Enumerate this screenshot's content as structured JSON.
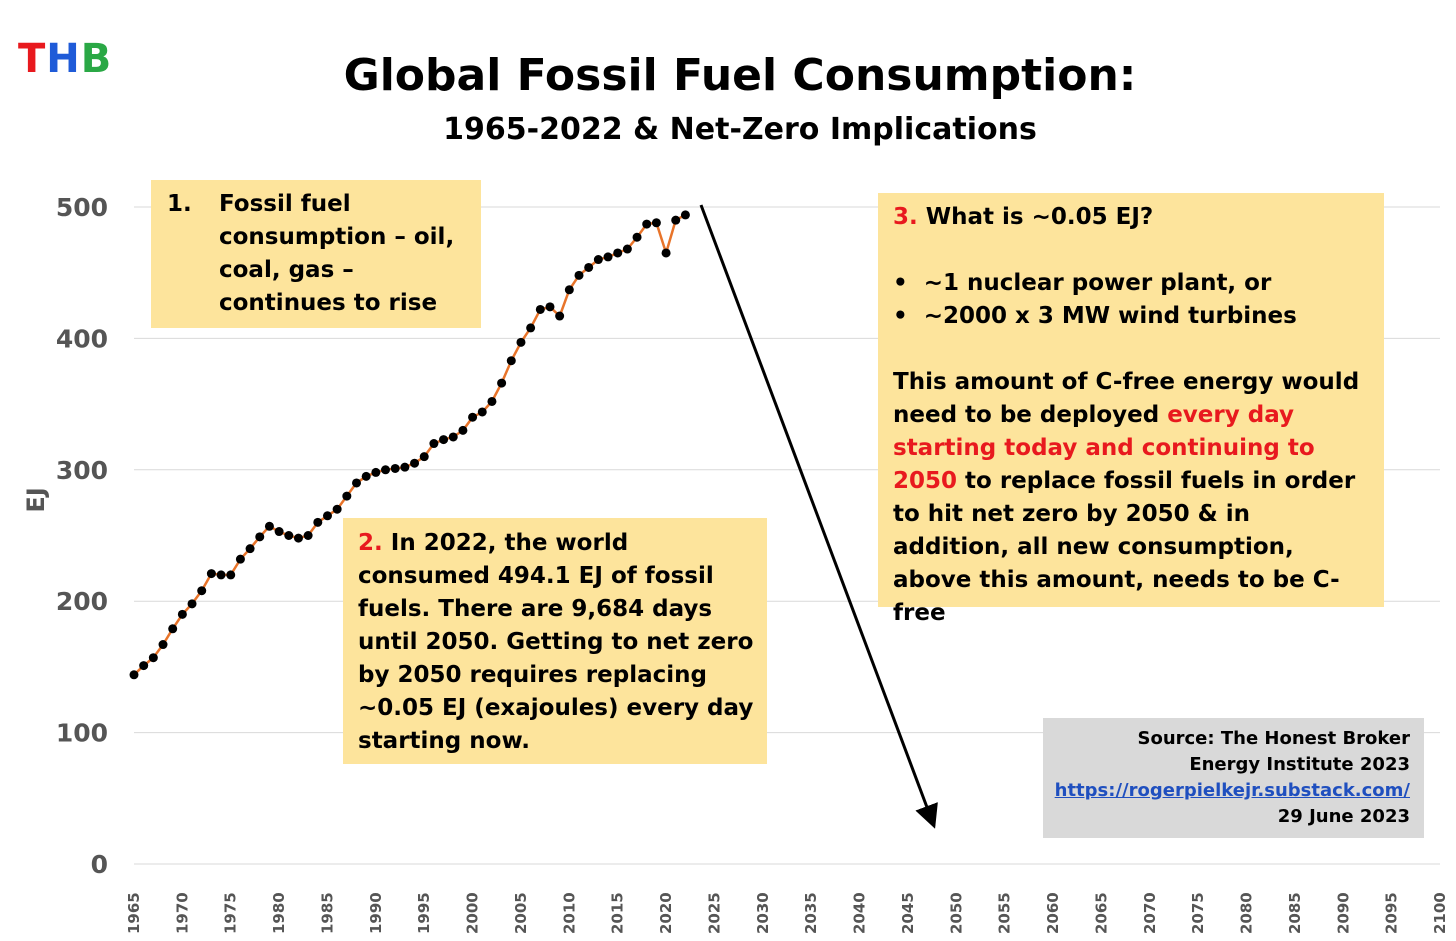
{
  "logo": {
    "t": "T",
    "h": "H",
    "b": "B"
  },
  "title": "Global Fossil Fuel Consumption:",
  "subtitle": "1965-2022 & Net-Zero Implications",
  "notes": {
    "note1": {
      "num": "1.",
      "text": "Fossil fuel consumption – oil, coal, gas – continues to rise"
    },
    "note2": {
      "num": "2.",
      "text": " In 2022, the world consumed 494.1 EJ of fossil fuels.  There are 9,684 days until 2050. Getting to net zero by 2050 requires replacing ~0.05 EJ (exajoules) every day starting now."
    },
    "note3": {
      "num": "3.",
      "heading": " What is ~0.05 EJ?",
      "bullets": [
        "~1 nuclear power plant, or",
        "~2000 x 3 MW wind turbines"
      ],
      "p_start": "This amount of C-free energy would need to be deployed ",
      "p_red": "every day starting today and continuing to 2050",
      "p_end": " to replace fossil fuels in order to hit net zero by 2050 & in addition, all new consumption, above this amount, needs to be C-free"
    }
  },
  "source": {
    "line1": "Source: The Honest Broker",
    "line2": "Energy Institute 2023",
    "link": "https://rogerpielkejr.substack.com/",
    "date": "29 June 2023"
  },
  "colors": {
    "line": "#e8742a",
    "marker": "#000000",
    "note_bg": "#fde49c",
    "source_bg": "#d9d9d9",
    "grid": "#d9d9d9",
    "highlight": "#e8191e"
  },
  "chart_data": {
    "type": "line",
    "title": "Global Fossil Fuel Consumption:",
    "subtitle": "1965-2022 & Net-Zero Implications",
    "xlabel": "",
    "ylabel": "EJ",
    "xlim": [
      1965,
      2100
    ],
    "ylim": [
      0,
      500
    ],
    "yticks": [
      0,
      100,
      200,
      300,
      400,
      500
    ],
    "xticks": [
      1965,
      1970,
      1975,
      1980,
      1985,
      1990,
      1995,
      2000,
      2005,
      2010,
      2015,
      2020,
      2025,
      2030,
      2035,
      2040,
      2045,
      2050,
      2055,
      2060,
      2065,
      2070,
      2075,
      2080,
      2085,
      2090,
      2095,
      2100
    ],
    "grid": "horizontal",
    "x": [
      1965,
      1966,
      1967,
      1968,
      1969,
      1970,
      1971,
      1972,
      1973,
      1974,
      1975,
      1976,
      1977,
      1978,
      1979,
      1980,
      1981,
      1982,
      1983,
      1984,
      1985,
      1986,
      1987,
      1988,
      1989,
      1990,
      1991,
      1992,
      1993,
      1994,
      1995,
      1996,
      1997,
      1998,
      1999,
      2000,
      2001,
      2002,
      2003,
      2004,
      2005,
      2006,
      2007,
      2008,
      2009,
      2010,
      2011,
      2012,
      2013,
      2014,
      2015,
      2016,
      2017,
      2018,
      2019,
      2020,
      2021,
      2022
    ],
    "y": [
      144,
      151,
      157,
      167,
      179,
      190,
      198,
      208,
      221,
      220,
      220,
      232,
      240,
      249,
      257,
      253,
      250,
      248,
      250,
      260,
      265,
      270,
      280,
      290,
      295,
      298,
      300,
      301,
      302,
      305,
      310,
      320,
      323,
      325,
      330,
      340,
      344,
      352,
      366,
      383,
      397,
      408,
      422,
      424,
      417,
      437,
      448,
      454,
      460,
      462,
      465,
      468,
      477,
      487,
      488,
      465,
      490,
      494
    ]
  }
}
